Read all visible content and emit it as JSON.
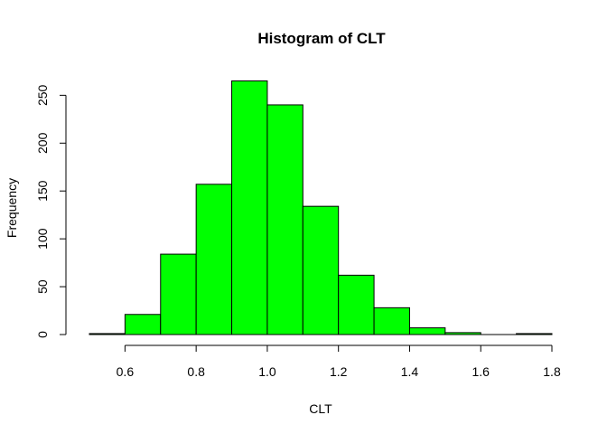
{
  "chart_data": {
    "type": "bar",
    "title": "Histogram of CLT",
    "xlabel": "CLT",
    "ylabel": "Frequency",
    "bins": [
      {
        "from": 0.5,
        "to": 0.6,
        "count": 1
      },
      {
        "from": 0.6,
        "to": 0.7,
        "count": 21
      },
      {
        "from": 0.7,
        "to": 0.8,
        "count": 84
      },
      {
        "from": 0.8,
        "to": 0.9,
        "count": 157
      },
      {
        "from": 0.9,
        "to": 1.0,
        "count": 265
      },
      {
        "from": 1.0,
        "to": 1.1,
        "count": 240
      },
      {
        "from": 1.1,
        "to": 1.2,
        "count": 134
      },
      {
        "from": 1.2,
        "to": 1.3,
        "count": 62
      },
      {
        "from": 1.3,
        "to": 1.4,
        "count": 28
      },
      {
        "from": 1.4,
        "to": 1.5,
        "count": 7
      },
      {
        "from": 1.5,
        "to": 1.6,
        "count": 2
      },
      {
        "from": 1.6,
        "to": 1.7,
        "count": 0
      },
      {
        "from": 1.7,
        "to": 1.8,
        "count": 1
      }
    ],
    "xlim": [
      0.5,
      1.8
    ],
    "ylim": [
      0,
      265
    ],
    "x_ticks": [
      0.6,
      0.8,
      1.0,
      1.2,
      1.4,
      1.6,
      1.8
    ],
    "x_tick_labels": [
      "0.6",
      "0.8",
      "1.0",
      "1.2",
      "1.4",
      "1.6",
      "1.8"
    ],
    "y_ticks": [
      0,
      50,
      100,
      150,
      200,
      250
    ],
    "y_tick_labels": [
      "0",
      "50",
      "100",
      "150",
      "200",
      "250"
    ],
    "bar_color": "#00ff00",
    "border_color": "#000000",
    "grid": false,
    "legend": "none"
  }
}
